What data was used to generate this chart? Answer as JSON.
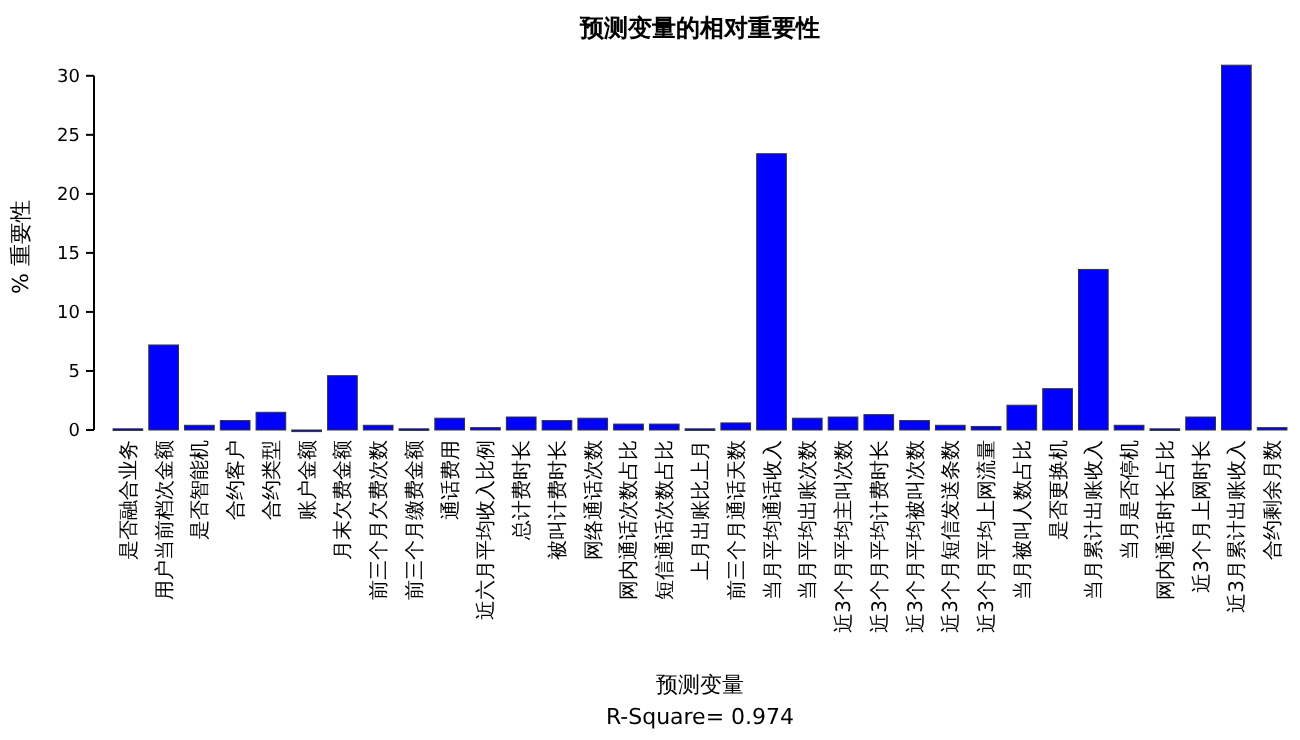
{
  "chart_data": {
    "type": "bar",
    "title": "预测变量的相对重要性",
    "xlabel": "预测变量",
    "ylabel": "% 重要性",
    "annotations": [
      "R-Square= 0.974"
    ],
    "categories": [
      "是否融合业务",
      "用户当前档次金额",
      "是否智能机",
      "合约客户",
      "合约类型",
      "账户金额",
      "月末欠费金额",
      "前三个月欠费次数",
      "前三个月缴费金额",
      "通话费用",
      "近六月平均收入比例",
      "总计费时长",
      "被叫计费时长",
      "网络通话次数",
      "网内通话次数占比",
      "短信通话次数占比",
      "上月出账比上月",
      "前三个月通话天数",
      "当月平均通话收入",
      "当月平均出账次数",
      "近3个月平均主叫次数",
      "近3个月平均计费时长",
      "近3个月平均被叫次数",
      "近3个月短信发送条数",
      "近3个月平均上网流量",
      "当月被叫人数占比",
      "是否更换机",
      "当月累计出账收入",
      "当月是否停机",
      "网内通话时长占比",
      "近3个月上网时长",
      "近3月累计出账收入",
      "合约剩余月数"
    ],
    "values": [
      0.1,
      7.2,
      0.4,
      0.8,
      1.5,
      0,
      4.6,
      0.4,
      0.1,
      1.0,
      0.2,
      1.1,
      0.8,
      1.0,
      0.5,
      0.5,
      0.1,
      0.6,
      23.4,
      1.0,
      1.1,
      1.3,
      0.8,
      0.4,
      0.3,
      2.1,
      3.5,
      13.6,
      0.4,
      0.1,
      1.1,
      30.9,
      0.2
    ],
    "color": "#0000ff",
    "ylim": [
      0,
      31
    ],
    "yticks": [
      0,
      5,
      10,
      15,
      20,
      25,
      30
    ]
  }
}
